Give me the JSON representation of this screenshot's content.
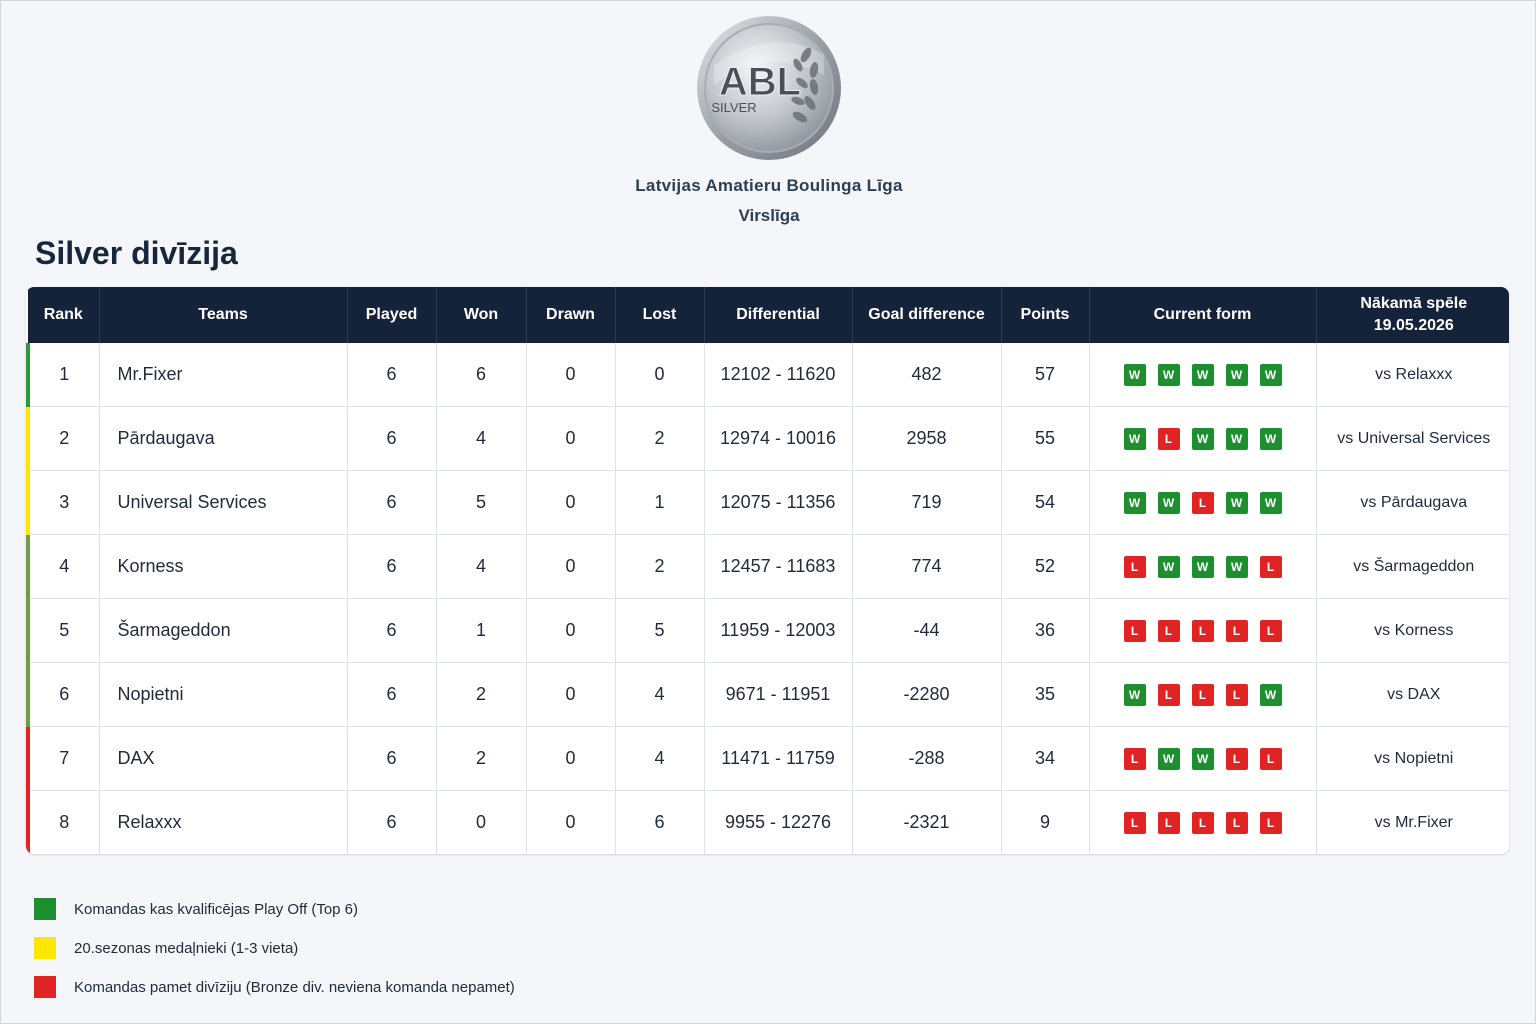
{
  "header": {
    "logo_text": "ABL",
    "logo_sub": "SILVER",
    "org_title": "Latvijas Amatieru Boulinga Līga",
    "org_subtitle": "Virslīga"
  },
  "division_title": "Silver divīzija",
  "columns": {
    "rank": "Rank",
    "teams": "Teams",
    "played": "Played",
    "won": "Won",
    "drawn": "Drawn",
    "lost": "Lost",
    "differential": "Differential",
    "goal_difference": "Goal difference",
    "points": "Points",
    "current_form": "Current form",
    "next_game_line1": "Nākamā spēle",
    "next_game_line2": "19.05.2026"
  },
  "colors": {
    "win": "#1e8f2f",
    "loss": "#e02323",
    "playoff": "#2a9a3b",
    "medal": "#ffe600",
    "relegation": "#e02323",
    "qualify_muted": "#6e9e45"
  },
  "rows": [
    {
      "rank": "1",
      "team": "Mr.Fixer",
      "played": "6",
      "won": "6",
      "drawn": "0",
      "lost": "0",
      "differential": "12102 - 11620",
      "goal_difference": "482",
      "points": "57",
      "form": [
        "W",
        "W",
        "W",
        "W",
        "W"
      ],
      "next": "vs Relaxxx",
      "marker": "#2a9a3b"
    },
    {
      "rank": "2",
      "team": "Pārdaugava",
      "played": "6",
      "won": "4",
      "drawn": "0",
      "lost": "2",
      "differential": "12974 - 10016",
      "goal_difference": "2958",
      "points": "55",
      "form": [
        "W",
        "L",
        "W",
        "W",
        "W"
      ],
      "next": "vs Universal Services",
      "marker": "#ffe600"
    },
    {
      "rank": "3",
      "team": "Universal Services",
      "played": "6",
      "won": "5",
      "drawn": "0",
      "lost": "1",
      "differential": "12075 - 11356",
      "goal_difference": "719",
      "points": "54",
      "form": [
        "W",
        "W",
        "L",
        "W",
        "W"
      ],
      "next": "vs Pārdaugava",
      "marker": "#ffe600"
    },
    {
      "rank": "4",
      "team": "Korness",
      "played": "6",
      "won": "4",
      "drawn": "0",
      "lost": "2",
      "differential": "12457 - 11683",
      "goal_difference": "774",
      "points": "52",
      "form": [
        "L",
        "W",
        "W",
        "W",
        "L"
      ],
      "next": "vs Šarmageddon",
      "marker": "#6e9e45"
    },
    {
      "rank": "5",
      "team": "Šarmageddon",
      "played": "6",
      "won": "1",
      "drawn": "0",
      "lost": "5",
      "differential": "11959 - 12003",
      "goal_difference": "-44",
      "points": "36",
      "form": [
        "L",
        "L",
        "L",
        "L",
        "L"
      ],
      "next": "vs Korness",
      "marker": "#6e9e45"
    },
    {
      "rank": "6",
      "team": "Nopietni",
      "played": "6",
      "won": "2",
      "drawn": "0",
      "lost": "4",
      "differential": "9671 - 11951",
      "goal_difference": "-2280",
      "points": "35",
      "form": [
        "W",
        "L",
        "L",
        "L",
        "W"
      ],
      "next": "vs DAX",
      "marker": "#6e9e45"
    },
    {
      "rank": "7",
      "team": "DAX",
      "played": "6",
      "won": "2",
      "drawn": "0",
      "lost": "4",
      "differential": "11471 - 11759",
      "goal_difference": "-288",
      "points": "34",
      "form": [
        "L",
        "W",
        "W",
        "L",
        "L"
      ],
      "next": "vs Nopietni",
      "marker": "#e02323"
    },
    {
      "rank": "8",
      "team": "Relaxxx",
      "played": "6",
      "won": "0",
      "drawn": "0",
      "lost": "6",
      "differential": "9955 - 12276",
      "goal_difference": "-2321",
      "points": "9",
      "form": [
        "L",
        "L",
        "L",
        "L",
        "L"
      ],
      "next": "vs Mr.Fixer",
      "marker": "#e02323"
    }
  ],
  "legend": [
    {
      "color": "#1e8f2f",
      "text": "Komandas kas kvalificējas Play Off (Top 6)"
    },
    {
      "color": "#ffe600",
      "text": "20.sezonas medaļnieki (1-3 vieta)"
    },
    {
      "color": "#e02323",
      "text": "Komandas pamet divīziju (Bronze div. neviena komanda nepamet)"
    }
  ]
}
